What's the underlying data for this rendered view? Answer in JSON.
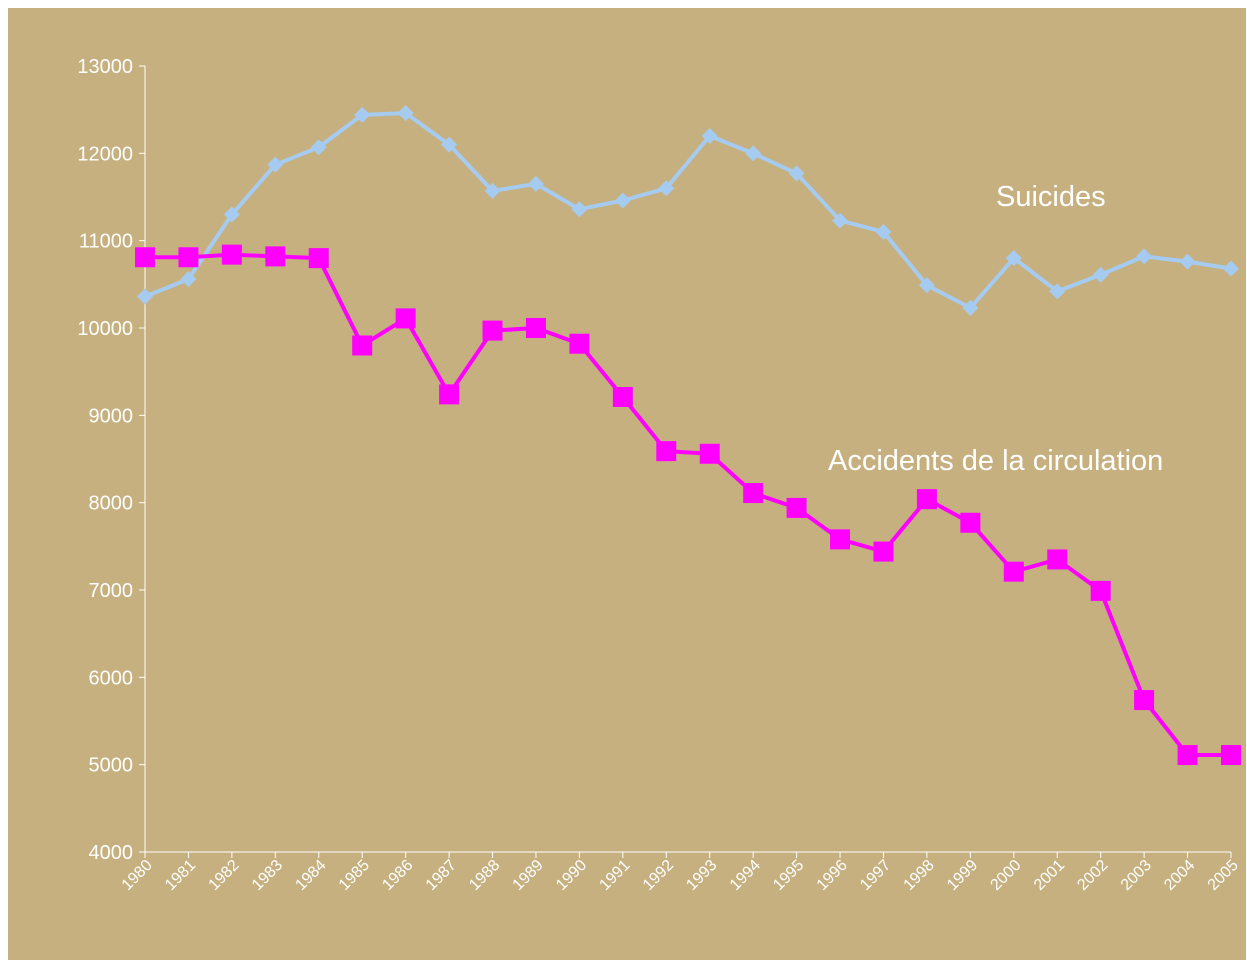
{
  "chart_data": {
    "type": "line",
    "title": "",
    "xlabel": "",
    "ylabel": "",
    "ylim": [
      4000,
      13000
    ],
    "yticks": [
      4000,
      5000,
      6000,
      7000,
      8000,
      9000,
      10000,
      11000,
      12000,
      13000
    ],
    "grid": false,
    "legend": "inline labels",
    "x": [
      "1980",
      "1981",
      "1982",
      "1983",
      "1984",
      "1985",
      "1986",
      "1987",
      "1988",
      "1989",
      "1990",
      "1991",
      "1992",
      "1993",
      "1994",
      "1995",
      "1996",
      "1997",
      "1998",
      "1999",
      "2000",
      "2001",
      "2002",
      "2003",
      "2004",
      "2005"
    ],
    "series": [
      {
        "name": "Suicides",
        "color": "#a6cbf0",
        "marker": "diamond",
        "values": [
          10360,
          10560,
          11300,
          11870,
          12070,
          12440,
          12460,
          12100,
          11570,
          11650,
          11360,
          11460,
          11600,
          12200,
          12000,
          11770,
          11230,
          11100,
          10490,
          10230,
          10800,
          10420,
          10610,
          10820,
          10760,
          10680
        ]
      },
      {
        "name": "Accidents de la circulation",
        "color": "#ff00ff",
        "marker": "square",
        "values": [
          10810,
          10810,
          10840,
          10820,
          10800,
          9800,
          10110,
          9240,
          9970,
          10000,
          9820,
          9210,
          8590,
          8560,
          8110,
          7940,
          7580,
          7440,
          8040,
          7770,
          7210,
          7350,
          6990,
          5740,
          5110,
          5110
        ]
      }
    ]
  }
}
